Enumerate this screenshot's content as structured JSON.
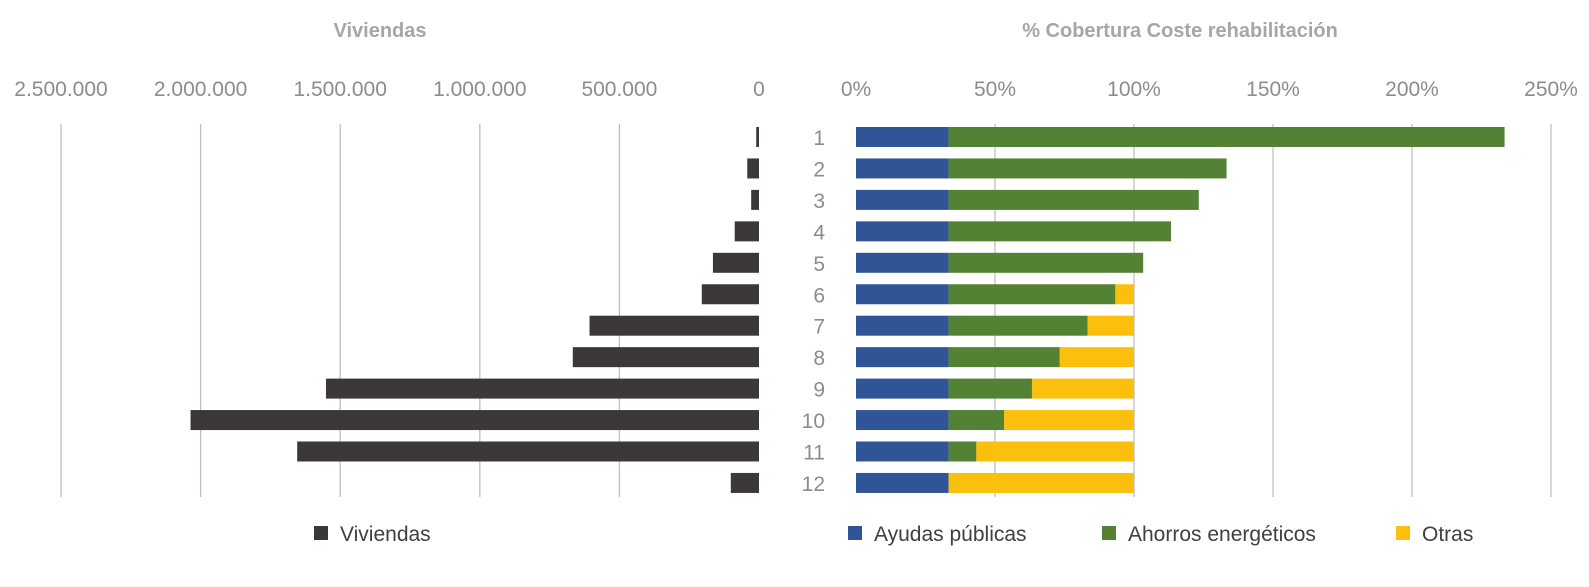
{
  "chart_data": [
    {
      "type": "bar",
      "orientation": "horizontal",
      "direction": "reversed",
      "title": "Viviendas",
      "categories": [
        "1",
        "2",
        "3",
        "4",
        "5",
        "6",
        "7",
        "8",
        "9",
        "10",
        "11",
        "12"
      ],
      "series": [
        {
          "name": "Viviendas",
          "color": "#3c3837",
          "values": [
            10000,
            42000,
            28000,
            87000,
            165000,
            205000,
            607000,
            667000,
            1551000,
            2036000,
            1654000,
            101000
          ]
        }
      ],
      "xlim": [
        0,
        2500000
      ],
      "xticks": [
        2500000,
        2000000,
        1500000,
        1000000,
        500000,
        0
      ],
      "xtick_labels": [
        "2.500.000",
        "2.000.000",
        "1.500.000",
        "1.000.000",
        "500.000",
        "0"
      ],
      "grid": true,
      "legend": "bottom"
    },
    {
      "type": "bar",
      "orientation": "horizontal",
      "stacked": true,
      "title": "% Cobertura Coste rehabilitación",
      "categories": [
        "1",
        "2",
        "3",
        "4",
        "5",
        "6",
        "7",
        "8",
        "9",
        "10",
        "11",
        "12"
      ],
      "series": [
        {
          "name": "Ayudas públicas",
          "color": "#2f5597",
          "values": [
            33.3,
            33.3,
            33.3,
            33.3,
            33.3,
            33.3,
            33.3,
            33.3,
            33.3,
            33.3,
            33.3,
            33.3
          ]
        },
        {
          "name": "Ahorros energéticos",
          "color": "#548235",
          "values": [
            200,
            100,
            90,
            80,
            70,
            60,
            50,
            40,
            30,
            20,
            10,
            0
          ]
        },
        {
          "name": "Otras",
          "color": "#fbbf0e",
          "values": [
            0,
            0,
            0,
            0,
            0,
            6.7,
            16.7,
            26.7,
            36.7,
            46.7,
            56.7,
            66.7
          ]
        }
      ],
      "xlim": [
        0,
        250
      ],
      "xticks": [
        0,
        50,
        100,
        150,
        200,
        250
      ],
      "xtick_labels": [
        "0%",
        "50%",
        "100%",
        "150%",
        "200%",
        "250%"
      ],
      "grid": true,
      "legend": "bottom"
    }
  ]
}
